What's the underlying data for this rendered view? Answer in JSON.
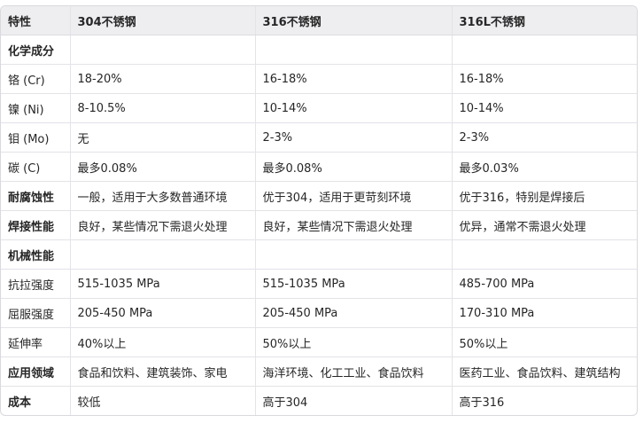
{
  "table": {
    "headers": [
      "特性",
      "304不锈钢",
      "316不锈钢",
      "316L不锈钢"
    ],
    "rows": [
      {
        "cells": [
          "化学成分",
          "",
          "",
          ""
        ],
        "bold": true
      },
      {
        "cells": [
          "铬 (Cr)",
          "18-20%",
          "16-18%",
          "16-18%"
        ],
        "bold": false
      },
      {
        "cells": [
          "镍 (Ni)",
          "8-10.5%",
          "10-14%",
          "10-14%"
        ],
        "bold": false
      },
      {
        "cells": [
          "钼 (Mo)",
          "无",
          "2-3%",
          "2-3%"
        ],
        "bold": false
      },
      {
        "cells": [
          "碳 (C)",
          "最多0.08%",
          "最多0.08%",
          "最多0.03%"
        ],
        "bold": false
      },
      {
        "cells": [
          "耐腐蚀性",
          "一般，适用于大多数普通环境",
          "优于304，适用于更苛刻环境",
          "优于316，特别是焊接后"
        ],
        "bold": true
      },
      {
        "cells": [
          "焊接性能",
          "良好，某些情况下需退火处理",
          "良好，某些情况下需退火处理",
          "优异，通常不需退火处理"
        ],
        "bold": true
      },
      {
        "cells": [
          "机械性能",
          "",
          "",
          ""
        ],
        "bold": true
      },
      {
        "cells": [
          "抗拉强度",
          "515-1035 MPa",
          "515-1035 MPa",
          "485-700 MPa"
        ],
        "bold": false
      },
      {
        "cells": [
          "屈服强度",
          "205-450 MPa",
          "205-450 MPa",
          "170-310 MPa"
        ],
        "bold": false
      },
      {
        "cells": [
          "延伸率",
          "40%以上",
          "50%以上",
          "50%以上"
        ],
        "bold": false
      },
      {
        "cells": [
          "应用领域",
          "食品和饮料、建筑装饰、家电",
          "海洋环境、化工工业、食品饮料",
          "医药工业、食品饮料、建筑结构"
        ],
        "bold": true
      },
      {
        "cells": [
          "成本",
          "较低",
          "高于304",
          "高于316"
        ],
        "bold": true
      }
    ]
  }
}
